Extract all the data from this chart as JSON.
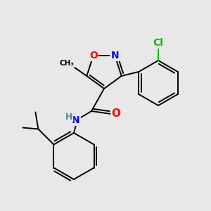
{
  "bg_color": "#e8e8e8",
  "bond_color": "#000000",
  "atom_colors": {
    "O": "#ff0000",
    "N": "#0000ff",
    "Cl": "#00bb00",
    "H": "#4a9090"
  },
  "figsize": [
    3.0,
    3.0
  ],
  "dpi": 100
}
